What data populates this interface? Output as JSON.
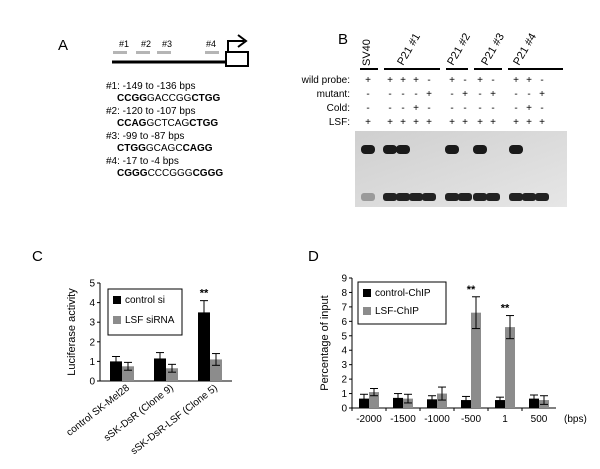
{
  "panel_letters": [
    "A",
    "B",
    "C",
    "D"
  ],
  "panel_a": {
    "site_labels": [
      "#1",
      "#2",
      "#3",
      "#4"
    ],
    "sites": [
      {
        "range": "#1: -149 to -136 bps",
        "seq": [
          [
            "CCGG",
            true
          ],
          [
            "GACCGG",
            false
          ],
          [
            "CTGG",
            true
          ]
        ]
      },
      {
        "range": "#2: -120 to -107 bps",
        "seq": [
          [
            "CCAG",
            true
          ],
          [
            "GCTCAG",
            false
          ],
          [
            "CTGG",
            true
          ]
        ]
      },
      {
        "range": "#3: -99 to -87 bps",
        "seq": [
          [
            "CTGG",
            true
          ],
          [
            "GCAGC",
            false
          ],
          [
            "CAGG",
            true
          ]
        ]
      },
      {
        "range": "#4: -17 to -4 bps",
        "seq": [
          [
            "CGGG",
            true
          ],
          [
            "CCCGGG",
            false
          ],
          [
            "CGGG",
            true
          ]
        ]
      }
    ]
  },
  "panel_b": {
    "lane_groups": [
      "SV40",
      "P21 #1",
      "P21 #2",
      "P21 #3",
      "P21 #4"
    ],
    "row_labels": [
      "wild probe:",
      "mutant:",
      "Cold:",
      "LSF:"
    ],
    "rows": [
      [
        "+",
        "+",
        "+",
        "+",
        "-",
        "+",
        "-",
        "+",
        "-",
        "+",
        "+",
        "-"
      ],
      [
        "-",
        "-",
        "-",
        "-",
        "+",
        "-",
        "+",
        "-",
        "+",
        "-",
        "-",
        "+"
      ],
      [
        "-",
        "-",
        "-",
        "+",
        "-",
        "-",
        "-",
        "-",
        "-",
        "-",
        "+",
        "-"
      ],
      [
        "+",
        "+",
        "+",
        "+",
        "+",
        "+",
        "+",
        "+",
        "+",
        "+",
        "+",
        "+"
      ]
    ]
  },
  "chart_data": [
    {
      "type": "bar",
      "ylabel": "Luciferase activity",
      "ylim": [
        0,
        5
      ],
      "yticks": [
        "0",
        "1",
        "2",
        "3",
        "4",
        "5"
      ],
      "categories": [
        "control  SK-Mel28",
        "sSK-DsR (Clone 9)",
        "sSK-DsR-LSF (Clone 5)"
      ],
      "series": [
        {
          "name": "control si",
          "color": "#000000",
          "values": [
            1.0,
            1.15,
            3.5
          ],
          "errors": [
            0.25,
            0.3,
            0.6
          ]
        },
        {
          "name": "LSF siRNA",
          "color": "#8c8c8c",
          "values": [
            0.75,
            0.65,
            1.1
          ],
          "errors": [
            0.2,
            0.2,
            0.3
          ]
        }
      ],
      "annotations": [
        {
          "category_index": 2,
          "text": "**"
        }
      ],
      "legend_position": "top-right"
    },
    {
      "type": "bar",
      "ylabel": "Percentage of input",
      "xunit": "(bps)",
      "ylim": [
        0,
        9
      ],
      "yticks": [
        "0",
        "1",
        "2",
        "3",
        "4",
        "5",
        "6",
        "7",
        "8",
        "9"
      ],
      "categories": [
        "-2000",
        "-1500",
        "-1000",
        "-500",
        "1",
        "500"
      ],
      "series": [
        {
          "name": "control-ChIP",
          "color": "#000000",
          "values": [
            0.65,
            0.7,
            0.6,
            0.55,
            0.55,
            0.65
          ],
          "errors": [
            0.3,
            0.3,
            0.25,
            0.25,
            0.2,
            0.25
          ]
        },
        {
          "name": "LSF-ChIP",
          "color": "#8c8c8c",
          "values": [
            1.1,
            0.65,
            1.0,
            6.6,
            5.6,
            0.55
          ],
          "errors": [
            0.25,
            0.3,
            0.45,
            1.1,
            0.8,
            0.3
          ]
        }
      ],
      "annotations": [
        {
          "category_index": 3,
          "text": "**"
        },
        {
          "category_index": 4,
          "text": "**"
        }
      ],
      "legend_position": "top-left"
    }
  ]
}
